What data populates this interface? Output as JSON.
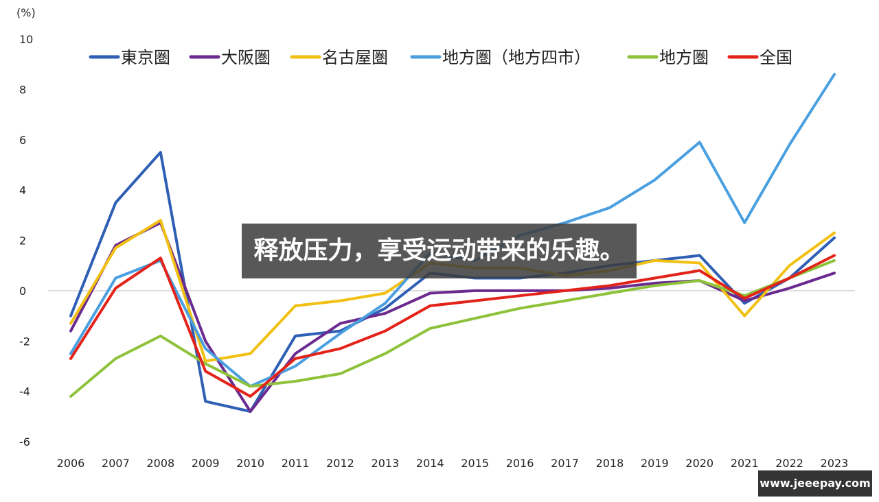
{
  "unit_label": "(%)",
  "overlay": {
    "caption": "释放压力，享受运动带来的乐趣。"
  },
  "watermark": {
    "text": "www.jeeepay.com"
  },
  "chart_data": {
    "type": "line",
    "title": "",
    "ylabel": "(%)",
    "xlabel": "",
    "ylim": [
      -6,
      10
    ],
    "y_ticks": [
      10,
      8,
      6,
      4,
      2,
      0,
      -2,
      -4,
      -6
    ],
    "x": [
      "2006",
      "2007",
      "2008",
      "2009",
      "2010",
      "2011",
      "2012",
      "2013",
      "2014",
      "2015",
      "2016",
      "2017",
      "2018",
      "2019",
      "2020",
      "2021",
      "2022",
      "2023"
    ],
    "grid": "zero-line only",
    "legend_position": "top",
    "series": [
      {
        "name": "東京圏",
        "color": "#2e5fb5",
        "values": [
          -1.0,
          3.5,
          5.5,
          -4.4,
          -4.8,
          -1.8,
          -1.6,
          -0.7,
          0.7,
          0.5,
          0.5,
          0.7,
          1.0,
          1.2,
          1.4,
          -0.5,
          0.5,
          2.1
        ]
      },
      {
        "name": "大阪圏",
        "color": "#6b2a8f",
        "values": [
          -1.6,
          1.8,
          2.7,
          -2.0,
          -4.8,
          -2.5,
          -1.3,
          -0.9,
          -0.1,
          0.0,
          0.0,
          0.0,
          0.1,
          0.3,
          0.4,
          -0.4,
          0.1,
          0.7
        ]
      },
      {
        "name": "名古屋圏",
        "color": "#f2c012",
        "values": [
          -1.3,
          1.7,
          2.8,
          -2.8,
          -2.5,
          -0.6,
          -0.4,
          -0.1,
          1.1,
          0.9,
          0.9,
          0.6,
          0.8,
          1.2,
          1.1,
          -1.0,
          1.0,
          2.3
        ]
      },
      {
        "name": "地方圏（地方四市）",
        "color": "#4a9fe0",
        "values": [
          -2.5,
          0.5,
          1.2,
          -2.3,
          -3.8,
          -3.0,
          -1.7,
          -0.5,
          1.5,
          1.2,
          2.2,
          2.7,
          3.3,
          4.4,
          5.9,
          2.7,
          5.8,
          8.6
        ]
      },
      {
        "name": "地方圏",
        "color": "#8dc23a",
        "values": [
          -4.2,
          -2.7,
          -1.8,
          -2.9,
          -3.8,
          -3.6,
          -3.3,
          -2.5,
          -1.5,
          -1.1,
          -0.7,
          -0.4,
          -0.1,
          0.2,
          0.4,
          -0.2,
          0.5,
          1.2
        ]
      },
      {
        "name": "全国",
        "color": "#e32219",
        "values": [
          -2.7,
          0.1,
          1.3,
          -3.2,
          -4.2,
          -2.7,
          -2.3,
          -1.6,
          -0.6,
          -0.4,
          -0.2,
          0.0,
          0.2,
          0.5,
          0.8,
          -0.3,
          0.5,
          1.4
        ]
      }
    ]
  }
}
